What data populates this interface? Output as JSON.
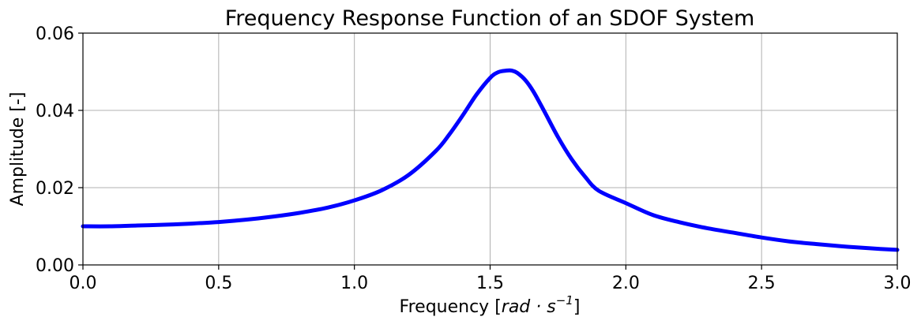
{
  "chart_data": {
    "type": "line",
    "title": "Frequency Response Function of an SDOF System",
    "xlabel": {
      "prefix": "Frequency [",
      "unit_base": "rad · s",
      "unit_exp": "−1",
      "suffix": "]"
    },
    "ylabel": "Amplitude [-]",
    "xlim": [
      0.0,
      3.0
    ],
    "ylim": [
      0.0,
      0.06
    ],
    "xticks": [
      {
        "value": 0.0,
        "label": "0.0"
      },
      {
        "value": 0.5,
        "label": "0.5"
      },
      {
        "value": 1.0,
        "label": "1.0"
      },
      {
        "value": 1.5,
        "label": "1.5"
      },
      {
        "value": 2.0,
        "label": "2.0"
      },
      {
        "value": 2.5,
        "label": "2.5"
      },
      {
        "value": 3.0,
        "label": "3.0"
      }
    ],
    "yticks": [
      {
        "value": 0.0,
        "label": "0.00"
      },
      {
        "value": 0.02,
        "label": "0.02"
      },
      {
        "value": 0.04,
        "label": "0.04"
      },
      {
        "value": 0.06,
        "label": "0.06"
      }
    ],
    "grid": true,
    "series": [
      {
        "color": "#0000ff",
        "x": [
          0.0,
          0.1,
          0.2,
          0.3,
          0.4,
          0.5,
          0.6,
          0.7,
          0.8,
          0.9,
          1.0,
          1.1,
          1.2,
          1.3,
          1.35,
          1.4,
          1.45,
          1.5,
          1.53,
          1.56,
          1.58,
          1.6,
          1.63,
          1.66,
          1.7,
          1.75,
          1.8,
          1.85,
          1.9,
          2.0,
          2.1,
          2.2,
          2.3,
          2.4,
          2.5,
          2.6,
          2.7,
          2.8,
          2.9,
          3.0
        ],
        "y": [
          0.01,
          0.01,
          0.0102,
          0.0104,
          0.0107,
          0.0111,
          0.0117,
          0.0125,
          0.0135,
          0.0148,
          0.0167,
          0.0193,
          0.0233,
          0.0295,
          0.0338,
          0.0388,
          0.0441,
          0.0484,
          0.0499,
          0.0503,
          0.0503,
          0.0497,
          0.0478,
          0.0448,
          0.0397,
          0.0331,
          0.0274,
          0.0228,
          0.0192,
          0.016,
          0.0129,
          0.011,
          0.0095,
          0.0083,
          0.0071,
          0.0061,
          0.0054,
          0.0048,
          0.0043,
          0.0039
        ]
      }
    ]
  }
}
